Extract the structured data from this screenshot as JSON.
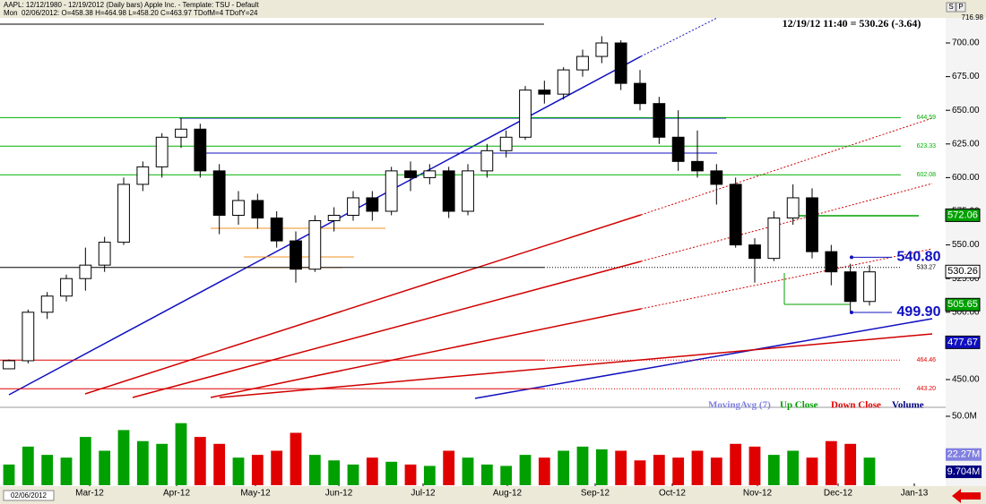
{
  "header": {
    "title": "AAPL: 12/12/1980 - 12/19/2012 (Daily bars)   Apple Inc. - Template: TSU - Default",
    "day": "Mon",
    "info": "02/06/2012:  O=458.38  H=464.98  L=458.20  C=463.97  TDofM=4  TDofY=24",
    "date_box": "02/06/2012",
    "buttons": [
      "S",
      "P"
    ]
  },
  "chart_data": {
    "type": "candlestick",
    "quote": "12/19/12 11:40 = 530.26 (-3.64)",
    "top_value": {
      "value": 716.98,
      "label": "716.98"
    },
    "categories": [
      "Mar-12",
      "Apr-12",
      "May-12",
      "Jun-12",
      "Jul-12",
      "Aug-12",
      "Sep-12",
      "Oct-12",
      "Nov-12",
      "Dec-12",
      "Jan-13"
    ],
    "open": [
      458,
      464,
      500,
      512,
      525,
      535,
      552,
      595,
      608,
      630,
      636,
      605,
      572,
      583,
      570,
      553,
      532,
      568,
      572,
      585,
      575,
      605,
      600,
      605,
      575,
      605,
      620,
      630,
      665,
      662,
      680,
      690,
      700,
      670,
      655,
      630,
      612,
      605,
      595,
      550,
      540,
      570,
      585,
      545,
      530,
      508
    ],
    "high": [
      465,
      502,
      515,
      528,
      548,
      556,
      600,
      612,
      633,
      644,
      640,
      610,
      590,
      588,
      575,
      560,
      572,
      578,
      590,
      590,
      608,
      612,
      610,
      608,
      610,
      625,
      635,
      668,
      672,
      682,
      695,
      705,
      702,
      680,
      660,
      650,
      635,
      610,
      600,
      555,
      575,
      595,
      592,
      550,
      536,
      535
    ],
    "low": [
      458,
      462,
      495,
      508,
      516,
      530,
      550,
      590,
      600,
      622,
      600,
      558,
      565,
      562,
      548,
      522,
      530,
      560,
      568,
      568,
      572,
      590,
      595,
      570,
      572,
      600,
      615,
      628,
      655,
      658,
      675,
      685,
      665,
      650,
      625,
      605,
      600,
      580,
      548,
      522,
      538,
      565,
      540,
      520,
      500,
      505
    ],
    "close": [
      464,
      500,
      512,
      525,
      535,
      552,
      595,
      608,
      630,
      636,
      605,
      572,
      583,
      570,
      553,
      532,
      568,
      572,
      585,
      575,
      605,
      600,
      605,
      575,
      605,
      620,
      630,
      665,
      662,
      680,
      690,
      700,
      670,
      655,
      630,
      612,
      605,
      595,
      550,
      540,
      570,
      585,
      545,
      530,
      508,
      530
    ],
    "volume": [
      15,
      28,
      22,
      20,
      35,
      25,
      40,
      32,
      30,
      45,
      35,
      30,
      20,
      22,
      25,
      38,
      22,
      18,
      15,
      20,
      17,
      15,
      14,
      25,
      20,
      15,
      14,
      22,
      20,
      25,
      28,
      26,
      25,
      18,
      22,
      20,
      25,
      20,
      30,
      28,
      22,
      25,
      20,
      32,
      30,
      20
    ],
    "up_color": "#00a000",
    "down_color": "#e00000",
    "ylim": [
      430,
      716
    ],
    "yticks": [
      {
        "value": 450,
        "label": "450.00"
      },
      {
        "value": 475,
        "label": "475.00"
      },
      {
        "value": 500,
        "label": "500.00"
      },
      {
        "value": 525,
        "label": "525.00"
      },
      {
        "value": 550,
        "label": "550.00"
      },
      {
        "value": 575,
        "label": "575.00"
      },
      {
        "value": 600,
        "label": "600.00"
      },
      {
        "value": 625,
        "label": "625.00"
      },
      {
        "value": 650,
        "label": "650.00"
      },
      {
        "value": 675,
        "label": "675.00"
      },
      {
        "value": 700,
        "label": "700.00"
      }
    ],
    "vlim": [
      0,
      50
    ],
    "vticks": [
      {
        "value": 50,
        "label": "50.0M"
      }
    ],
    "levels": [
      {
        "value": 644.59,
        "label": "644.59",
        "color": "#00b000"
      },
      {
        "value": 623.33,
        "label": "623.33",
        "color": "#00b000"
      },
      {
        "value": 602.08,
        "label": "602.08",
        "color": "#00b000"
      },
      {
        "value": 533.27,
        "label": "533.27",
        "color": "#000000"
      },
      {
        "value": 464.46,
        "label": "464.46",
        "color": "#e00000"
      },
      {
        "value": 443.2,
        "label": "443.20",
        "color": "#e00000"
      }
    ],
    "price_boxes": [
      {
        "value": 572.06,
        "label": "572.06",
        "color": "#00a000"
      },
      {
        "value": 530.26,
        "label": "530.26",
        "color": "#000000"
      },
      {
        "value": 505.65,
        "label": "505.65",
        "color": "#00a000"
      },
      {
        "value": 477.67,
        "label": "477.67",
        "color": "#1010c0"
      }
    ],
    "callouts": [
      {
        "value": 540.8,
        "label": "540.80"
      },
      {
        "value": 499.9,
        "label": "499.90"
      }
    ],
    "volume_boxes": [
      {
        "value": 22.27,
        "label": "22.27M"
      },
      {
        "value": 9.704,
        "label": "9.704M"
      }
    ],
    "legend": [
      {
        "name": "MovingAvg (7)",
        "color": "#8080e0"
      },
      {
        "name": "Up Close",
        "color": "#00a000"
      },
      {
        "name": "Down Close",
        "color": "#e00000"
      },
      {
        "name": "Volume",
        "color": "#000080"
      }
    ]
  }
}
